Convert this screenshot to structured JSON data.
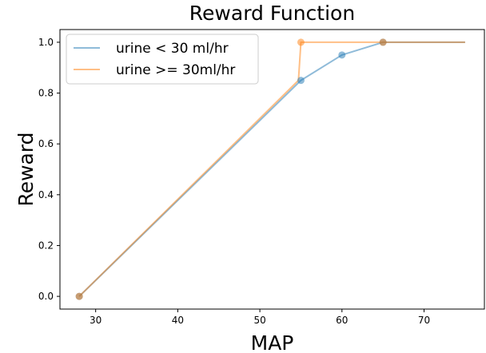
{
  "chart_data": {
    "type": "line",
    "title": "Reward Function",
    "xlabel": "MAP",
    "ylabel": "Reward",
    "xlim": [
      25.65,
      77.35
    ],
    "ylim": [
      -0.05,
      1.05
    ],
    "xticks": [
      30,
      40,
      50,
      60,
      70
    ],
    "yticks": [
      0.0,
      0.2,
      0.4,
      0.6,
      0.8,
      1.0
    ],
    "grid": false,
    "legend_position": "top-left",
    "series": [
      {
        "name": "urine < 30 ml/hr",
        "color": "#1f77b4",
        "x": [
          28,
          55,
          60,
          65,
          75
        ],
        "y": [
          0.0,
          0.85,
          0.95,
          1.0,
          1.0
        ],
        "marker_x": [
          28,
          55,
          60,
          65
        ]
      },
      {
        "name": "urine >= 30ml/hr",
        "color": "#ff7f0e",
        "x": [
          28,
          54.7,
          55,
          65,
          75
        ],
        "y": [
          0.0,
          0.85,
          1.0,
          1.0,
          1.0
        ],
        "marker_x": [
          28,
          55,
          65
        ]
      }
    ]
  }
}
